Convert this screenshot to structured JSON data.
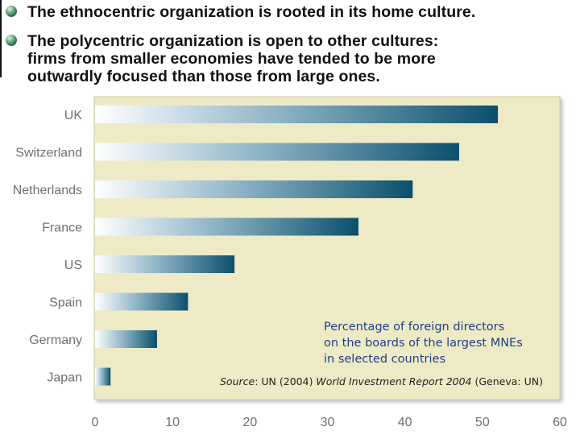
{
  "bullets": [
    "The ethnocentric organization is rooted in its home culture.",
    [
      "The polycentric organization is open to other cultures:",
      "firms from smaller economies have tended to be more",
      "outwardly focused than those from large ones."
    ]
  ],
  "chart_data": {
    "type": "bar",
    "orientation": "horizontal",
    "categories": [
      "UK",
      "Switzerland",
      "Netherlands",
      "France",
      "US",
      "Spain",
      "Germany",
      "Japan"
    ],
    "values": [
      52,
      47,
      41,
      34,
      18,
      12,
      8,
      2
    ],
    "xlim": [
      0,
      60
    ],
    "xticks": [
      "0",
      "10",
      "20",
      "30",
      "40",
      "50",
      "60"
    ],
    "grid": false,
    "bar_color": "#0b4f6c",
    "plot_background": "#efeac6"
  },
  "caption": [
    "Percentage of foreign directors",
    "on the boards of the largest MNEs",
    "in selected countries"
  ],
  "source": {
    "label": "Source",
    "pre": ": UN (2004) ",
    "title": "World Investment Report 2004",
    "post": " (Geneva: UN)"
  }
}
